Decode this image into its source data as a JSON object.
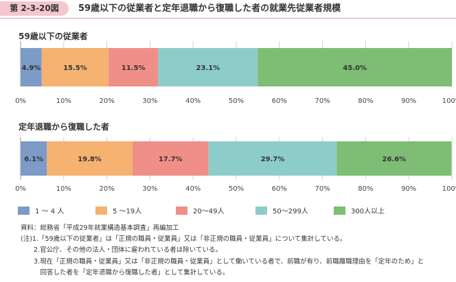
{
  "header": {
    "figure_number": "第 2-3-20図",
    "title": "59歳以下の従業者と定年退職から復職した者の就業先従業者規模"
  },
  "chart_data": [
    {
      "type": "bar",
      "orientation": "horizontal-stacked-100",
      "title": "59歳以下の従業者",
      "xlim": [
        0,
        100
      ],
      "x_ticks": [
        "0%",
        "10%",
        "20%",
        "30%",
        "40%",
        "50%",
        "60%",
        "70%",
        "80%",
        "90%",
        "100%"
      ],
      "grid": true,
      "series": [
        {
          "name": "1～4 人",
          "value": 4.9,
          "label": "4.9%"
        },
        {
          "name": "5～19人",
          "value": 15.5,
          "label": "15.5%"
        },
        {
          "name": "20～49人",
          "value": 11.5,
          "label": "11.5%"
        },
        {
          "name": "50～299人",
          "value": 23.1,
          "label": "23.1%"
        },
        {
          "name": "300人以上",
          "value": 45.0,
          "label": "45.0%"
        }
      ]
    },
    {
      "type": "bar",
      "orientation": "horizontal-stacked-100",
      "title": "定年退職から復職した者",
      "xlim": [
        0,
        100
      ],
      "x_ticks": [
        "0%",
        "10%",
        "20%",
        "30%",
        "40%",
        "50%",
        "60%",
        "70%",
        "80%",
        "90%",
        "100%"
      ],
      "grid": true,
      "series": [
        {
          "name": "1～4 人",
          "value": 6.1,
          "label": "6.1%"
        },
        {
          "name": "5～19人",
          "value": 19.8,
          "label": "19.8%"
        },
        {
          "name": "20～49人",
          "value": 17.7,
          "label": "17.7%"
        },
        {
          "name": "50～299人",
          "value": 29.7,
          "label": "29.7%"
        },
        {
          "name": "300人以上",
          "value": 26.6,
          "label": "26.6%"
        }
      ]
    }
  ],
  "legend": {
    "position": "bottom",
    "items": [
      {
        "label": "1 ～ 4 人",
        "color": "#7c9bc6"
      },
      {
        "label": "5 ～19人",
        "color": "#f5b270"
      },
      {
        "label": "20～49人",
        "color": "#ef8f88"
      },
      {
        "label": "50～299人",
        "color": "#8dcdc9"
      },
      {
        "label": "300人以上",
        "color": "#7dbd74"
      }
    ]
  },
  "colors": [
    "#7c9bc6",
    "#f5b270",
    "#ef8f88",
    "#8dcdc9",
    "#7dbd74"
  ],
  "notes": [
    "資料：総務省「平成29年就業構造基本調査」再編加工",
    "(注)1.「59歳以下の従業者」は「正規の職員・従業員」又は「非正規の職員・従業員」について集計している。",
    "　　2.官公庁、その他の法人・団体に雇われている者は除いている。",
    "　　3.現在「正規の職員・従業員」又は「非正規の職員・従業員」として働いている者で、前職が有り、前職離職理由を「定年のため」と",
    "　　　回答した者を「定年退職から復職した者」として集計している。"
  ]
}
